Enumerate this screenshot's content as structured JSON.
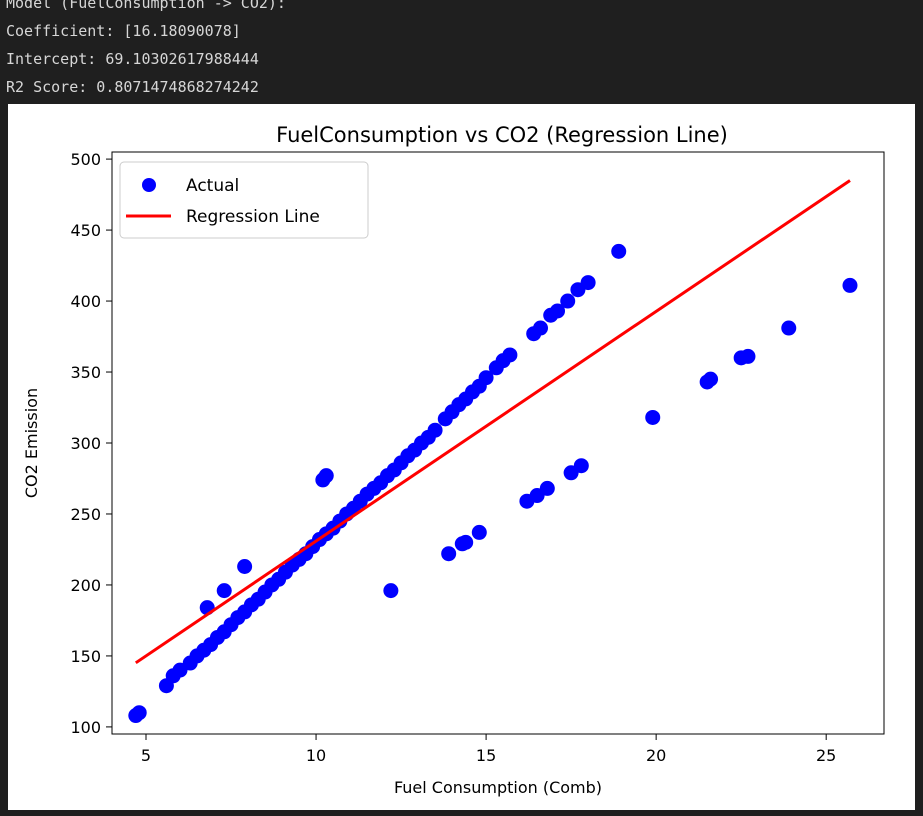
{
  "console": {
    "lines": [
      "Model (FuelConsumption -> CO2):",
      "Coefficient: [16.18090078]",
      "Intercept: 69.10302617988444",
      "R2 Score: 0.8071474868274242"
    ]
  },
  "chart_data": {
    "type": "scatter",
    "title": "FuelConsumption vs CO2 (Regression Line)",
    "xlabel": "Fuel Consumption (Comb)",
    "ylabel": "CO2 Emission",
    "xlim": [
      4.0,
      26.7
    ],
    "ylim": [
      95,
      505
    ],
    "xticks": [
      5,
      10,
      15,
      20,
      25
    ],
    "yticks": [
      100,
      150,
      200,
      250,
      300,
      350,
      400,
      450,
      500
    ],
    "grid": false,
    "legend": {
      "placement": "top-left",
      "entries": [
        "Actual",
        "Regression Line"
      ]
    },
    "series": [
      {
        "name": "Actual",
        "kind": "scatter",
        "color": "#0000ff",
        "points": [
          [
            4.7,
            108
          ],
          [
            4.8,
            110
          ],
          [
            5.6,
            129
          ],
          [
            5.8,
            136
          ],
          [
            6.0,
            140
          ],
          [
            6.3,
            145
          ],
          [
            6.5,
            150
          ],
          [
            6.7,
            154
          ],
          [
            6.8,
            184
          ],
          [
            6.9,
            158
          ],
          [
            7.1,
            163
          ],
          [
            7.3,
            167
          ],
          [
            7.3,
            196
          ],
          [
            7.5,
            172
          ],
          [
            7.7,
            177
          ],
          [
            7.9,
            181
          ],
          [
            7.9,
            213
          ],
          [
            8.1,
            186
          ],
          [
            8.3,
            190
          ],
          [
            8.5,
            195
          ],
          [
            8.7,
            200
          ],
          [
            8.9,
            204
          ],
          [
            9.1,
            209
          ],
          [
            9.3,
            214
          ],
          [
            9.5,
            218
          ],
          [
            9.7,
            222
          ],
          [
            9.9,
            227
          ],
          [
            10.1,
            232
          ],
          [
            10.2,
            274
          ],
          [
            10.3,
            236
          ],
          [
            10.3,
            277
          ],
          [
            10.5,
            240
          ],
          [
            10.7,
            245
          ],
          [
            10.9,
            250
          ],
          [
            11.1,
            254
          ],
          [
            11.3,
            259
          ],
          [
            11.5,
            264
          ],
          [
            11.7,
            268
          ],
          [
            11.9,
            272
          ],
          [
            12.1,
            277
          ],
          [
            12.2,
            196
          ],
          [
            12.3,
            281
          ],
          [
            12.5,
            286
          ],
          [
            12.7,
            291
          ],
          [
            12.9,
            295
          ],
          [
            13.1,
            300
          ],
          [
            13.3,
            304
          ],
          [
            13.5,
            309
          ],
          [
            13.8,
            317
          ],
          [
            13.9,
            222
          ],
          [
            14.0,
            322
          ],
          [
            14.2,
            327
          ],
          [
            14.3,
            229
          ],
          [
            14.4,
            331
          ],
          [
            14.4,
            230
          ],
          [
            14.6,
            336
          ],
          [
            14.8,
            237
          ],
          [
            14.8,
            340
          ],
          [
            15.0,
            346
          ],
          [
            15.3,
            353
          ],
          [
            15.5,
            358
          ],
          [
            15.7,
            362
          ],
          [
            16.2,
            259
          ],
          [
            16.4,
            377
          ],
          [
            16.5,
            263
          ],
          [
            16.6,
            381
          ],
          [
            16.8,
            268
          ],
          [
            16.9,
            390
          ],
          [
            17.1,
            393
          ],
          [
            17.4,
            400
          ],
          [
            17.5,
            279
          ],
          [
            17.7,
            408
          ],
          [
            17.8,
            284
          ],
          [
            18.0,
            413
          ],
          [
            18.9,
            435
          ],
          [
            19.9,
            318
          ],
          [
            21.5,
            343
          ],
          [
            21.6,
            345
          ],
          [
            22.5,
            360
          ],
          [
            22.7,
            361
          ],
          [
            23.9,
            381
          ],
          [
            25.7,
            411
          ]
        ]
      },
      {
        "name": "Regression Line",
        "kind": "line",
        "color": "#ff0000",
        "slope": 16.18090078,
        "intercept": 69.10302617988444,
        "x_range": [
          4.7,
          25.7
        ]
      }
    ]
  }
}
